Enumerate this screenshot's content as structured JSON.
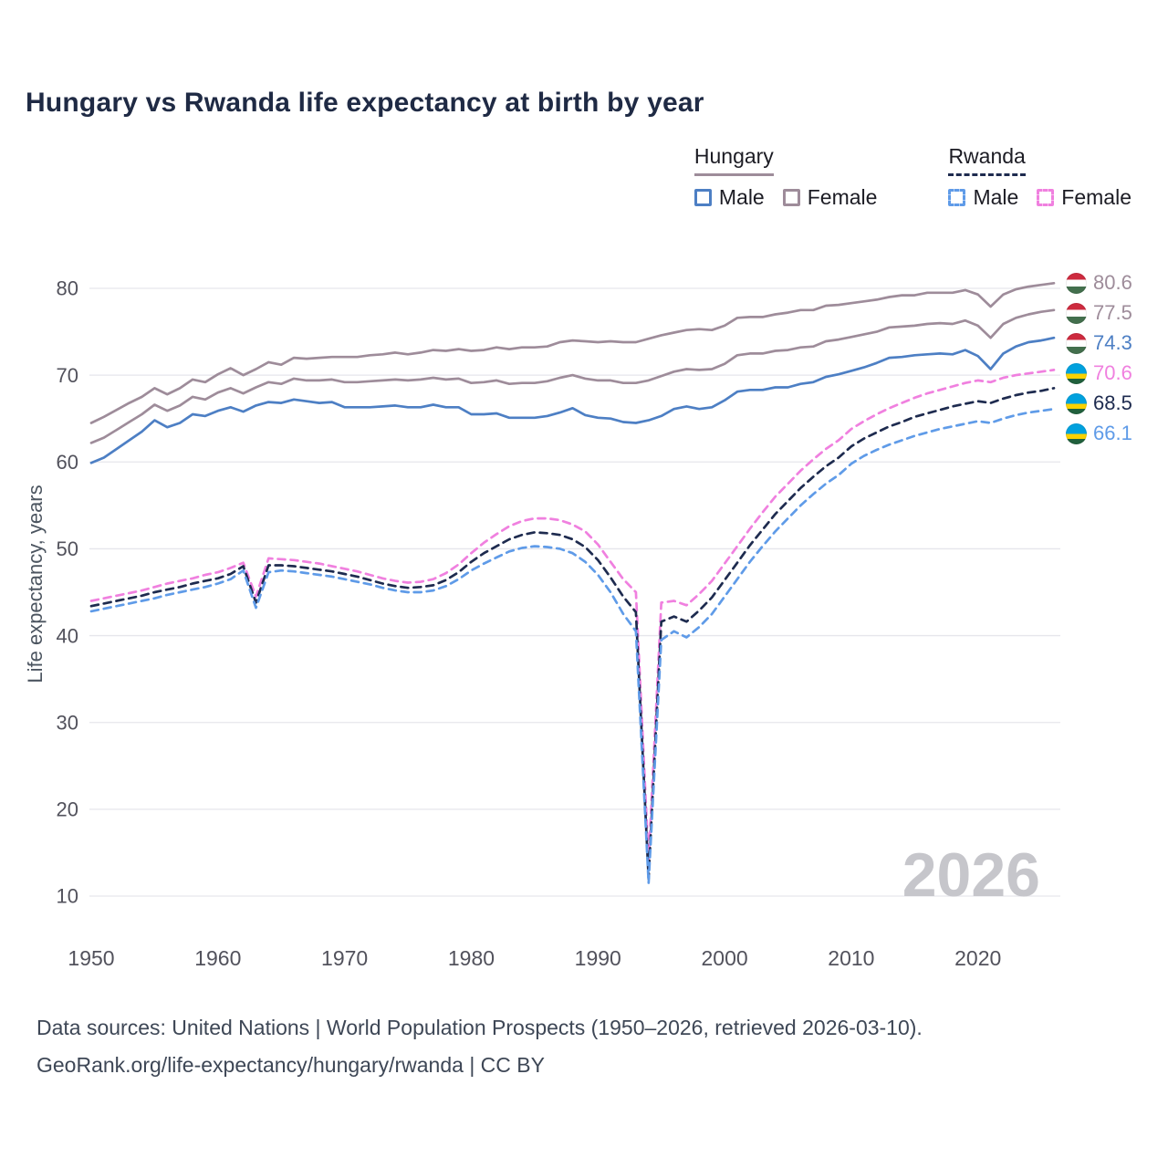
{
  "title": "Hungary vs Rwanda life expectancy at birth by year",
  "legend": {
    "groups": [
      {
        "name": "Hungary",
        "line_style": "solid",
        "line_color": "#9e8c9a",
        "items": [
          {
            "label": "Male",
            "color": "#4d7fc4"
          },
          {
            "label": "Female",
            "color": "#9e8c9a"
          }
        ]
      },
      {
        "name": "Rwanda",
        "line_style": "dashed",
        "line_color": "#1e2b4f",
        "items": [
          {
            "label": "Male",
            "color": "#5f9be8"
          },
          {
            "label": "Female",
            "color": "#f080df"
          }
        ]
      }
    ]
  },
  "watermark": "2026",
  "footer": {
    "line1": "Data sources: United Nations | World Population Prospects (1950–2026, retrieved 2026-03-10).",
    "line2": "GeoRank.org/life-expectancy/hungary/rwanda | CC BY"
  },
  "chart_data": {
    "type": "line",
    "title": "Hungary vs Rwanda life expectancy at birth by year",
    "xlabel": "",
    "ylabel": "Life expectancy, years",
    "x_start": 1950,
    "x_end": 2026,
    "xlim": [
      1950,
      2026
    ],
    "ylim": [
      4,
      83
    ],
    "x_ticks": [
      1950,
      1960,
      1970,
      1980,
      1990,
      2000,
      2010,
      2020
    ],
    "y_ticks": [
      10,
      20,
      30,
      40,
      50,
      60,
      70,
      80
    ],
    "grid": "horizontal",
    "legend_position": "top-right",
    "series": [
      {
        "name": "hungary-female",
        "country": "Hungary",
        "group": "Female",
        "color": "#9e8c9a",
        "dash": false,
        "values": [
          64.5,
          65.2,
          66.0,
          66.8,
          67.5,
          68.5,
          67.8,
          68.5,
          69.5,
          69.2,
          70.1,
          70.8,
          70.0,
          70.7,
          71.5,
          71.2,
          72.0,
          71.9,
          72.0,
          72.1,
          72.1,
          72.1,
          72.3,
          72.4,
          72.6,
          72.4,
          72.6,
          72.9,
          72.8,
          73.0,
          72.8,
          72.9,
          73.2,
          73.0,
          73.2,
          73.2,
          73.3,
          73.8,
          74.0,
          73.9,
          73.8,
          73.9,
          73.8,
          73.8,
          74.2,
          74.6,
          74.9,
          75.2,
          75.3,
          75.2,
          75.7,
          76.6,
          76.7,
          76.7,
          77.0,
          77.2,
          77.5,
          77.5,
          78.0,
          78.1,
          78.3,
          78.5,
          78.7,
          79.0,
          79.2,
          79.2,
          79.5,
          79.5,
          79.5,
          79.8,
          79.3,
          77.9,
          79.3,
          79.9,
          80.2,
          80.4,
          80.6
        ]
      },
      {
        "name": "hungary-both",
        "country": "Hungary",
        "group": "Both sexes",
        "color": "#9e8c9a",
        "dash": false,
        "values": [
          62.2,
          62.8,
          63.7,
          64.6,
          65.5,
          66.6,
          65.9,
          66.5,
          67.5,
          67.2,
          68.0,
          68.5,
          67.9,
          68.6,
          69.2,
          69.0,
          69.6,
          69.4,
          69.4,
          69.5,
          69.2,
          69.2,
          69.3,
          69.4,
          69.5,
          69.4,
          69.5,
          69.7,
          69.5,
          69.6,
          69.1,
          69.2,
          69.4,
          69.0,
          69.1,
          69.1,
          69.3,
          69.7,
          70.0,
          69.6,
          69.4,
          69.4,
          69.1,
          69.1,
          69.4,
          69.9,
          70.4,
          70.7,
          70.6,
          70.7,
          71.3,
          72.3,
          72.5,
          72.5,
          72.8,
          72.9,
          73.2,
          73.3,
          73.9,
          74.1,
          74.4,
          74.7,
          75.0,
          75.5,
          75.6,
          75.7,
          75.9,
          76.0,
          75.9,
          76.3,
          75.7,
          74.3,
          75.9,
          76.6,
          77.0,
          77.3,
          77.5
        ]
      },
      {
        "name": "hungary-male",
        "country": "Hungary",
        "group": "Male",
        "color": "#4d7fc4",
        "dash": false,
        "values": [
          59.9,
          60.5,
          61.5,
          62.5,
          63.5,
          64.8,
          64.0,
          64.5,
          65.5,
          65.3,
          65.9,
          66.3,
          65.8,
          66.5,
          66.9,
          66.8,
          67.2,
          67.0,
          66.8,
          66.9,
          66.3,
          66.3,
          66.3,
          66.4,
          66.5,
          66.3,
          66.3,
          66.6,
          66.3,
          66.3,
          65.5,
          65.5,
          65.6,
          65.1,
          65.1,
          65.1,
          65.3,
          65.7,
          66.2,
          65.4,
          65.1,
          65.0,
          64.6,
          64.5,
          64.8,
          65.3,
          66.1,
          66.4,
          66.1,
          66.3,
          67.1,
          68.1,
          68.3,
          68.3,
          68.6,
          68.6,
          69.0,
          69.2,
          69.8,
          70.1,
          70.5,
          70.9,
          71.4,
          72.0,
          72.1,
          72.3,
          72.4,
          72.5,
          72.4,
          72.9,
          72.2,
          70.7,
          72.5,
          73.3,
          73.8,
          74.0,
          74.3
        ]
      },
      {
        "name": "rwanda-female",
        "country": "Rwanda",
        "group": "Female",
        "color": "#f080df",
        "dash": true,
        "values": [
          44.0,
          44.3,
          44.6,
          44.9,
          45.2,
          45.6,
          46.0,
          46.3,
          46.6,
          47.0,
          47.3,
          47.8,
          48.4,
          44.5,
          48.9,
          48.8,
          48.7,
          48.5,
          48.3,
          48.0,
          47.7,
          47.4,
          47.0,
          46.6,
          46.3,
          46.1,
          46.2,
          46.5,
          47.2,
          48.2,
          49.5,
          50.7,
          51.7,
          52.6,
          53.2,
          53.5,
          53.5,
          53.3,
          52.8,
          52.0,
          50.5,
          48.5,
          46.5,
          45.0,
          14.0,
          43.8,
          44.0,
          43.5,
          44.8,
          46.3,
          48.3,
          50.3,
          52.3,
          54.2,
          56.0,
          57.5,
          59.0,
          60.3,
          61.5,
          62.5,
          63.8,
          64.7,
          65.5,
          66.2,
          66.8,
          67.4,
          67.9,
          68.3,
          68.7,
          69.1,
          69.4,
          69.2,
          69.7,
          70.0,
          70.2,
          70.4,
          70.6
        ]
      },
      {
        "name": "rwanda-both",
        "country": "Rwanda",
        "group": "Both sexes",
        "color": "#1e2b4f",
        "dash": true,
        "values": [
          43.4,
          43.7,
          44.0,
          44.3,
          44.6,
          45.0,
          45.3,
          45.6,
          46.0,
          46.3,
          46.6,
          47.1,
          48.0,
          43.8,
          48.1,
          48.1,
          48.0,
          47.8,
          47.6,
          47.4,
          47.1,
          46.8,
          46.4,
          46.0,
          45.7,
          45.5,
          45.6,
          45.8,
          46.4,
          47.3,
          48.5,
          49.5,
          50.3,
          51.1,
          51.6,
          51.9,
          51.8,
          51.6,
          51.1,
          50.2,
          48.7,
          46.7,
          44.5,
          42.7,
          12.0,
          41.6,
          42.2,
          41.6,
          42.9,
          44.4,
          46.4,
          48.4,
          50.4,
          52.2,
          54.0,
          55.5,
          57.0,
          58.3,
          59.5,
          60.5,
          61.8,
          62.7,
          63.4,
          64.1,
          64.6,
          65.2,
          65.6,
          66.0,
          66.4,
          66.7,
          67.0,
          66.8,
          67.3,
          67.7,
          68.0,
          68.2,
          68.5
        ]
      },
      {
        "name": "rwanda-male",
        "country": "Rwanda",
        "group": "Male",
        "color": "#5f9be8",
        "dash": true,
        "values": [
          42.8,
          43.1,
          43.4,
          43.7,
          44.0,
          44.3,
          44.7,
          45.0,
          45.3,
          45.6,
          46.0,
          46.5,
          47.5,
          43.2,
          47.3,
          47.5,
          47.4,
          47.2,
          47.0,
          46.8,
          46.5,
          46.2,
          45.9,
          45.5,
          45.2,
          45.0,
          45.0,
          45.2,
          45.7,
          46.5,
          47.5,
          48.3,
          49.0,
          49.7,
          50.1,
          50.3,
          50.2,
          50.0,
          49.5,
          48.5,
          47.0,
          45.0,
          42.5,
          40.5,
          11.5,
          39.5,
          40.5,
          39.8,
          41.0,
          42.5,
          44.5,
          46.5,
          48.5,
          50.3,
          52.0,
          53.5,
          55.0,
          56.3,
          57.5,
          58.5,
          59.8,
          60.7,
          61.4,
          62.0,
          62.5,
          63.0,
          63.4,
          63.8,
          64.1,
          64.4,
          64.7,
          64.5,
          65.0,
          65.4,
          65.7,
          65.9,
          66.1
        ]
      }
    ],
    "end_labels": [
      {
        "text": "80.6",
        "value": 80.6,
        "color": "#9e8c9a",
        "flag": "hungary",
        "series": "hungary-female"
      },
      {
        "text": "77.5",
        "value": 77.5,
        "color": "#9e8c9a",
        "flag": "hungary",
        "series": "hungary-both"
      },
      {
        "text": "74.3",
        "value": 74.3,
        "color": "#4d7fc4",
        "flag": "hungary",
        "series": "hungary-male"
      },
      {
        "text": "70.6",
        "value": 70.6,
        "color": "#f080df",
        "flag": "rwanda",
        "series": "rwanda-female"
      },
      {
        "text": "68.5",
        "value": 68.5,
        "color": "#1e2b4f",
        "flag": "rwanda",
        "series": "rwanda-both"
      },
      {
        "text": "66.1",
        "value": 66.1,
        "color": "#5f9be8",
        "flag": "rwanda",
        "series": "rwanda-male"
      }
    ]
  }
}
